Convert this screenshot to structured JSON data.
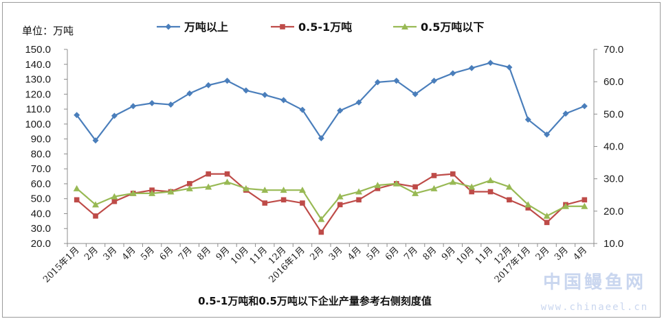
{
  "chart_data": {
    "type": "line",
    "unit_label": "单位：万吨",
    "caption": "0.5-1万吨和0.5万吨以下企业产量参考右侧刻度值",
    "categories": [
      "2015年1月",
      "2月",
      "3月",
      "4月",
      "5月",
      "6月",
      "7月",
      "8月",
      "9月",
      "10月",
      "11月",
      "12月",
      "2016年1月",
      "2月",
      "3月",
      "4月",
      "5月",
      "6月",
      "7月",
      "8月",
      "9月",
      "10月",
      "11月",
      "12月",
      "2017年1月",
      "2月",
      "3月",
      "4月"
    ],
    "left_axis": {
      "min": 20,
      "max": 150,
      "step": 10,
      "tick_labels": [
        "20.0",
        "30.0",
        "40.0",
        "50.0",
        "60.0",
        "70.0",
        "80.0",
        "90.0",
        "100.0",
        "110.0",
        "120.0",
        "130.0",
        "140.0",
        "150.0"
      ]
    },
    "right_axis": {
      "min": 10,
      "max": 70,
      "step": 10,
      "tick_labels": [
        "10.0",
        "20.0",
        "30.0",
        "40.0",
        "50.0",
        "60.0",
        "70.0"
      ]
    },
    "series": [
      {
        "name": "万吨以上",
        "axis": "left",
        "color": "#4a7ebb",
        "marker": "diamond",
        "values": [
          106,
          89,
          105.5,
          112,
          114,
          113,
          120.5,
          126,
          129,
          122.5,
          119.5,
          116,
          109.5,
          90.5,
          109,
          114.5,
          128,
          129,
          120,
          129,
          134,
          137.5,
          141,
          138,
          103,
          93,
          107,
          112
        ]
      },
      {
        "name": "0.5-1万吨",
        "axis": "right",
        "color": "#be4b48",
        "marker": "square",
        "values": [
          23.5,
          18.5,
          23,
          25.5,
          26.5,
          26,
          28.5,
          31.5,
          31.5,
          26.5,
          22.5,
          23.5,
          22.5,
          13.5,
          22,
          23.5,
          27,
          28.5,
          27.5,
          31,
          31.5,
          26,
          26,
          23.5,
          21,
          16.5,
          22,
          23.5
        ]
      },
      {
        "name": "0.5万吨以下",
        "axis": "right",
        "color": "#98b954",
        "marker": "triangle",
        "values": [
          27,
          22,
          24.5,
          25.5,
          25.5,
          26,
          27,
          27.5,
          29,
          27,
          26.5,
          26.5,
          26.5,
          17.5,
          24.5,
          26,
          28,
          28.5,
          25.5,
          27,
          29,
          27.5,
          29.5,
          27.5,
          22,
          18.5,
          21.5,
          21.5
        ]
      }
    ],
    "legend_position": "top",
    "grid": false
  },
  "watermark": {
    "title": "中国鳗鱼网",
    "url": "www.chinaeel.cn"
  }
}
